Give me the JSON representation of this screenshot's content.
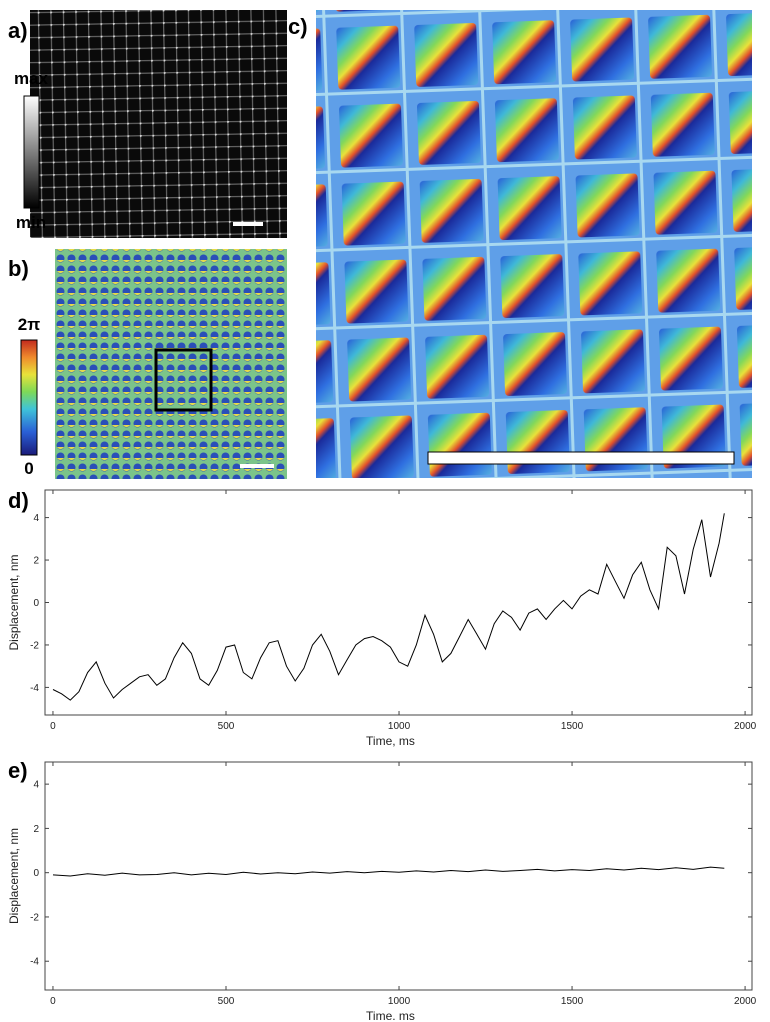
{
  "figure": {
    "panel_labels": [
      "a)",
      "b)",
      "c)",
      "d)",
      "e)"
    ],
    "intensity_bar": {
      "top": "max",
      "bottom": "min"
    },
    "phase_bar": {
      "top": "2π",
      "bottom": "0"
    }
  },
  "chart_data": [
    {
      "type": "line",
      "xlabel": "Time, ms",
      "ylabel": "Displacement, nm",
      "xlim": [
        -23,
        2020
      ],
      "ylim": [
        -5.3,
        5.3
      ],
      "xticks": [
        0,
        500,
        1000,
        1500,
        2000
      ],
      "yticks": [
        -4,
        -2,
        0,
        2,
        4
      ],
      "series": [
        {
          "color": "#000000",
          "x": [
            0,
            25,
            50,
            75,
            100,
            125,
            150,
            175,
            200,
            225,
            250,
            275,
            300,
            325,
            350,
            375,
            400,
            425,
            450,
            475,
            500,
            525,
            550,
            575,
            600,
            625,
            650,
            675,
            700,
            725,
            750,
            775,
            800,
            825,
            850,
            875,
            900,
            925,
            950,
            975,
            1000,
            1025,
            1050,
            1075,
            1100,
            1125,
            1150,
            1175,
            1200,
            1225,
            1250,
            1275,
            1300,
            1325,
            1350,
            1375,
            1400,
            1425,
            1450,
            1475,
            1500,
            1525,
            1550,
            1575,
            1600,
            1625,
            1650,
            1675,
            1700,
            1725,
            1750,
            1775,
            1800,
            1825,
            1850,
            1875,
            1900,
            1925,
            1940
          ],
          "values": [
            -4.1,
            -4.3,
            -4.6,
            -4.2,
            -3.3,
            -2.8,
            -3.8,
            -4.5,
            -4.1,
            -3.8,
            -3.5,
            -3.4,
            -3.9,
            -3.6,
            -2.6,
            -1.9,
            -2.4,
            -3.6,
            -3.9,
            -3.2,
            -2.1,
            -2.0,
            -3.3,
            -3.6,
            -2.6,
            -1.9,
            -1.8,
            -3.0,
            -3.7,
            -3.1,
            -2.0,
            -1.5,
            -2.3,
            -3.4,
            -2.7,
            -2.0,
            -1.7,
            -1.6,
            -1.8,
            -2.1,
            -2.8,
            -3.0,
            -2.0,
            -0.6,
            -1.5,
            -2.8,
            -2.4,
            -1.6,
            -0.8,
            -1.5,
            -2.2,
            -1.0,
            -0.4,
            -0.7,
            -1.3,
            -0.5,
            -0.3,
            -0.8,
            -0.3,
            0.1,
            -0.3,
            0.3,
            0.6,
            0.4,
            1.8,
            1.0,
            0.2,
            1.3,
            1.9,
            0.6,
            -0.3,
            2.6,
            2.2,
            0.4,
            2.5,
            3.9,
            1.2,
            2.8,
            4.2
          ]
        }
      ]
    },
    {
      "type": "line",
      "xlabel": "Time. ms",
      "ylabel": "Displacement, nm",
      "xlim": [
        -23,
        2020
      ],
      "ylim": [
        -5.3,
        5.0
      ],
      "xticks": [
        0,
        500,
        1000,
        1500,
        2000
      ],
      "yticks": [
        -4,
        -2,
        0,
        2,
        4
      ],
      "series": [
        {
          "color": "#000000",
          "x": [
            0,
            50,
            100,
            150,
            200,
            250,
            300,
            350,
            400,
            450,
            500,
            550,
            600,
            650,
            700,
            750,
            800,
            850,
            900,
            950,
            1000,
            1050,
            1100,
            1150,
            1200,
            1250,
            1300,
            1350,
            1400,
            1450,
            1500,
            1550,
            1600,
            1650,
            1700,
            1750,
            1800,
            1850,
            1900,
            1940
          ],
          "values": [
            -0.1,
            -0.15,
            -0.05,
            -0.12,
            -0.02,
            -0.1,
            -0.08,
            0.0,
            -0.1,
            -0.03,
            -0.08,
            0.02,
            -0.06,
            0.0,
            -0.05,
            0.03,
            -0.02,
            0.05,
            0.0,
            0.06,
            0.02,
            0.08,
            0.03,
            0.1,
            0.05,
            0.12,
            0.06,
            0.1,
            0.15,
            0.08,
            0.14,
            0.1,
            0.18,
            0.12,
            0.2,
            0.14,
            0.22,
            0.15,
            0.25,
            0.2
          ]
        }
      ]
    }
  ]
}
